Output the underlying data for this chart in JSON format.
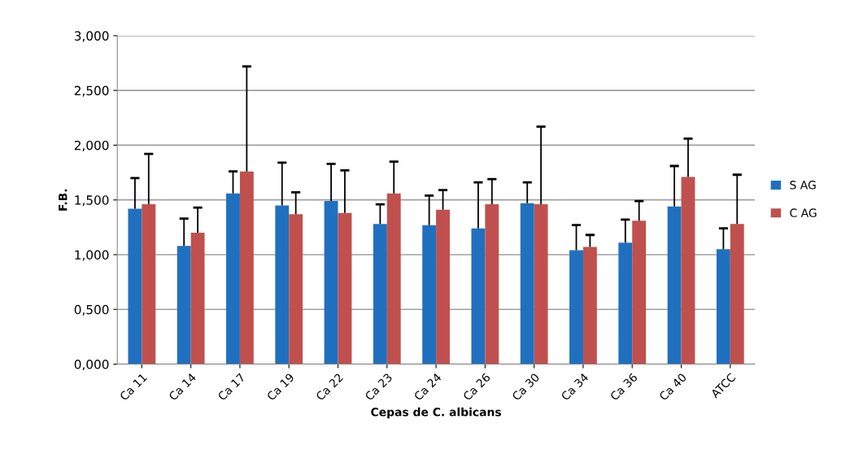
{
  "chart_data": {
    "type": "bar",
    "xlabel": "Cepas de C. albicans",
    "ylabel": "F.B.",
    "categories": [
      "Ca 11",
      "Ca 14",
      "Ca 17",
      "Ca 19",
      "Ca 22",
      "Ca 23",
      "Ca 24",
      "Ca 26",
      "Ca 30",
      "Ca 34",
      "Ca 36",
      "Ca 40",
      "ATCC"
    ],
    "series": [
      {
        "name": "S AG",
        "color": "#2070c0",
        "values": [
          1.42,
          1.08,
          1.56,
          1.45,
          1.49,
          1.28,
          1.27,
          1.24,
          1.47,
          1.04,
          1.11,
          1.44,
          1.05
        ],
        "errors": [
          [
            1.42,
            1.7
          ],
          [
            1.08,
            1.33
          ],
          [
            1.56,
            1.76
          ],
          [
            1.45,
            1.84
          ],
          [
            1.49,
            1.83
          ],
          [
            1.28,
            1.46
          ],
          [
            1.27,
            1.54
          ],
          [
            1.24,
            1.66
          ],
          [
            1.47,
            1.66
          ],
          [
            1.04,
            1.27
          ],
          [
            1.11,
            1.32
          ],
          [
            1.44,
            1.81
          ],
          [
            1.05,
            1.24
          ]
        ]
      },
      {
        "name": "C AG",
        "color": "#c0504d",
        "values": [
          1.46,
          1.2,
          1.76,
          1.37,
          1.38,
          1.56,
          1.41,
          1.46,
          1.46,
          1.07,
          1.31,
          1.71,
          1.28
        ],
        "errors": [
          [
            1.46,
            1.92
          ],
          [
            1.2,
            1.43
          ],
          [
            1.76,
            2.72
          ],
          [
            1.37,
            1.57
          ],
          [
            1.38,
            1.77
          ],
          [
            1.56,
            1.85
          ],
          [
            1.41,
            1.59
          ],
          [
            1.46,
            1.69
          ],
          [
            1.46,
            2.17
          ],
          [
            1.07,
            1.18
          ],
          [
            1.31,
            1.49
          ],
          [
            1.71,
            2.06
          ],
          [
            1.28,
            1.73
          ]
        ]
      }
    ],
    "ylim": [
      0,
      3
    ],
    "yticks": [
      {
        "value": 0,
        "label": "0,000"
      },
      {
        "value": 0.5,
        "label": "0,500"
      },
      {
        "value": 1,
        "label": "1,000"
      },
      {
        "value": 1.5,
        "label": "1,500"
      },
      {
        "value": 2,
        "label": "2,000"
      },
      {
        "value": 2.5,
        "label": "2,500"
      },
      {
        "value": 3,
        "label": "3,000"
      }
    ],
    "grid": "y",
    "legend": "right"
  }
}
